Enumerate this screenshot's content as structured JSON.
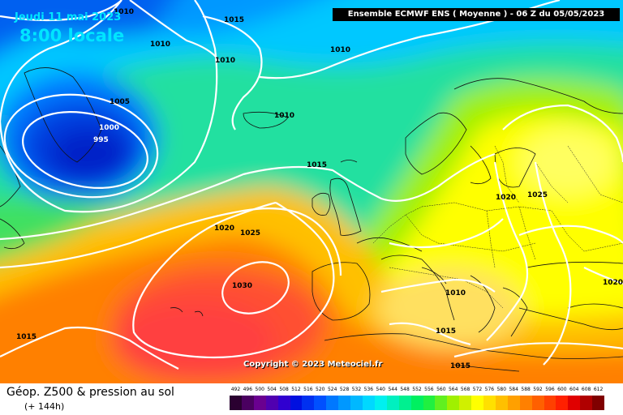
{
  "date": "Jeudi 11 mai 2023",
  "time": "8:00 locale",
  "header": "Ensemble ECMWF ENS  ( Moyenne )  -  06 Z du 05/05/2023",
  "copyright": "Copyright © 2023 Meteociel.fr",
  "footer": {
    "title": "Géop. Z500 & pression au sol",
    "subtitle": "(+ 144h)"
  },
  "legend": {
    "values": [
      "492",
      "496",
      "500",
      "504",
      "508",
      "512",
      "516",
      "520",
      "524",
      "528",
      "532",
      "536",
      "540",
      "544",
      "548",
      "552",
      "556",
      "560",
      "564",
      "568",
      "572",
      "576",
      "580",
      "584",
      "588",
      "592",
      "596",
      "600",
      "604",
      "608",
      "612"
    ],
    "colors": [
      "#2a0030",
      "#4a0060",
      "#6a0090",
      "#5000b0",
      "#3000d0",
      "#0010e0",
      "#0030f0",
      "#0050ff",
      "#0078ff",
      "#0098ff",
      "#00b8ff",
      "#00d8ff",
      "#00f0f0",
      "#00f0c0",
      "#00f090",
      "#00f060",
      "#20f040",
      "#60f020",
      "#a0f000",
      "#d0f000",
      "#ffff00",
      "#ffe000",
      "#ffc000",
      "#ffa000",
      "#ff8000",
      "#ff6000",
      "#ff4000",
      "#ff2000",
      "#e00000",
      "#b00000",
      "#800000"
    ]
  },
  "isobars": {
    "l1010_a": "1010",
    "l1015_a": "1015",
    "l1010_b": "1010",
    "l1010_c": "1010",
    "l1010_d": "1010",
    "l1005": "1005",
    "l1000": "1000",
    "l995": "995",
    "l1010_e": "1010",
    "l1015_b": "1015",
    "l1020_a": "1020",
    "l1025_a": "1025",
    "l1030": "1030",
    "l1015_c": "1015",
    "l1020_b": "1020",
    "l1025_b": "1025",
    "l1010_f": "1010",
    "l1015_d": "1015",
    "l1015_e": "1015",
    "l1020_c": "1020"
  }
}
